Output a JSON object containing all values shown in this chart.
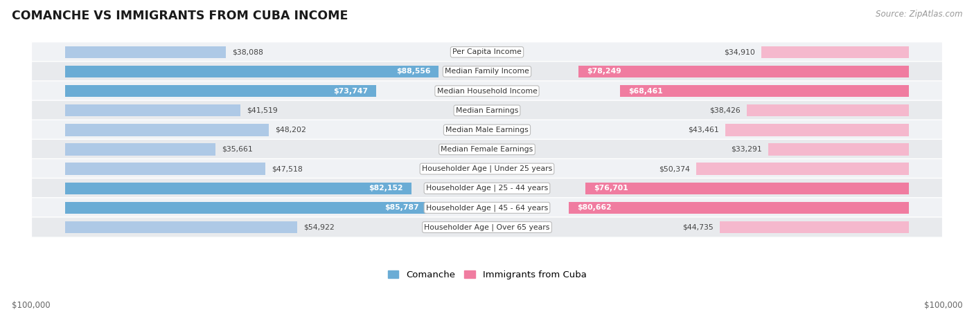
{
  "title": "COMANCHE VS IMMIGRANTS FROM CUBA INCOME",
  "source": "Source: ZipAtlas.com",
  "categories": [
    "Per Capita Income",
    "Median Family Income",
    "Median Household Income",
    "Median Earnings",
    "Median Male Earnings",
    "Median Female Earnings",
    "Householder Age | Under 25 years",
    "Householder Age | 25 - 44 years",
    "Householder Age | 45 - 64 years",
    "Householder Age | Over 65 years"
  ],
  "comanche_values": [
    38088,
    88556,
    73747,
    41519,
    48202,
    35661,
    47518,
    82152,
    85787,
    54922
  ],
  "cuba_values": [
    34910,
    78249,
    68461,
    38426,
    43461,
    33291,
    50374,
    76701,
    80662,
    44735
  ],
  "comanche_labels": [
    "$38,088",
    "$88,556",
    "$73,747",
    "$41,519",
    "$48,202",
    "$35,661",
    "$47,518",
    "$82,152",
    "$85,787",
    "$54,922"
  ],
  "cuba_labels": [
    "$34,910",
    "$78,249",
    "$68,461",
    "$38,426",
    "$43,461",
    "$33,291",
    "$50,374",
    "$76,701",
    "$80,662",
    "$44,735"
  ],
  "comanche_color_light": "#aec9e6",
  "comanche_color_dark": "#6aacd5",
  "cuba_color_light": "#f5b8cd",
  "cuba_color_dark": "#f07ca0",
  "max_value": 100000,
  "row_bg_even": "#f0f2f5",
  "row_bg_odd": "#e8eaed",
  "legend_comanche_color": "#6aacd5",
  "legend_cuba_color": "#f07ca0",
  "xlabel_left": "$100,000",
  "xlabel_right": "$100,000",
  "label_inside_threshold": 55000
}
